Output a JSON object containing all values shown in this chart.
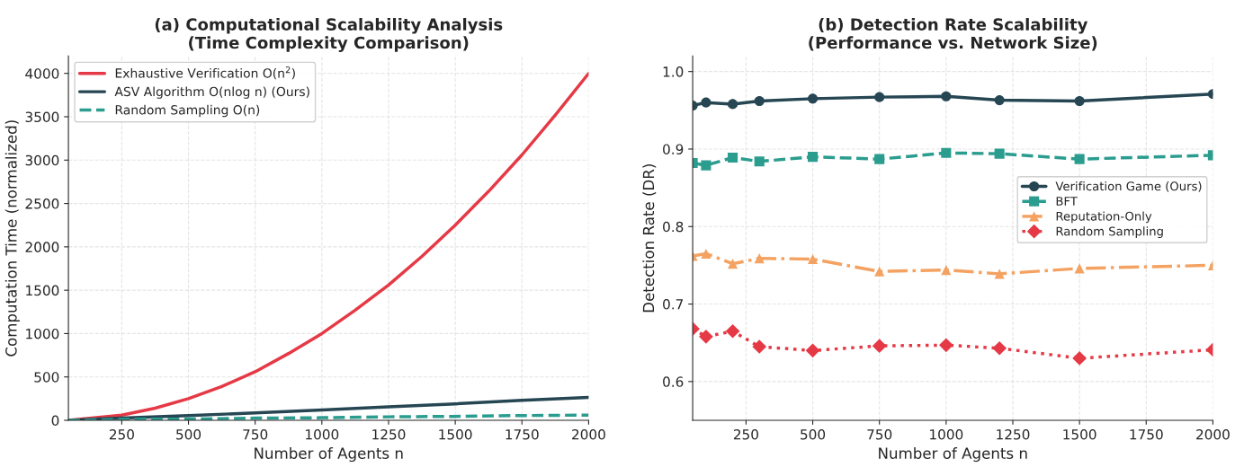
{
  "chart_data": [
    {
      "type": "line",
      "title": "(a) Computational Scalability Analysis\n(Time Complexity Comparison)",
      "xlabel": "Number of Agents n",
      "ylabel": "Computation Time (normalized)",
      "x": [
        50,
        250,
        500,
        750,
        1000,
        1250,
        1500,
        1750,
        2000
      ],
      "series": [
        {
          "name": "Exhaustive Verification O(n$^{2}$)",
          "color": "#e63946",
          "line_style": "solid",
          "x": [
            50,
            250,
            375,
            500,
            625,
            750,
            875,
            1000,
            1125,
            1250,
            1375,
            1500,
            1625,
            1750,
            1875,
            2000
          ],
          "values": [
            0,
            60,
            140,
            250,
            390,
            560,
            770,
            1000,
            1270,
            1560,
            1890,
            2250,
            2640,
            3060,
            3520,
            4000
          ]
        },
        {
          "name": "ASV Algorithm O(nlog n) (Ours)",
          "color": "#264653",
          "line_style": "solid",
          "values": [
            0,
            25,
            55,
            85,
            120,
            155,
            190,
            230,
            265
          ]
        },
        {
          "name": "Random Sampling O(n)",
          "color": "#2a9d8f",
          "line_style": "dashed",
          "values": [
            0,
            10,
            15,
            25,
            30,
            40,
            45,
            55,
            60
          ]
        }
      ],
      "xlim": [
        50,
        2000
      ],
      "xticks": [
        250,
        500,
        750,
        1000,
        1250,
        1500,
        1750,
        2000
      ],
      "ylim": [
        0,
        4200
      ],
      "yticks": [
        0,
        500,
        1000,
        1500,
        2000,
        2500,
        3000,
        3500,
        4000
      ],
      "grid": true,
      "legend": "top left"
    },
    {
      "type": "line",
      "title": "(b) Detection Rate Scalability\n(Performance vs. Network Size)",
      "xlabel": "Number of Agents n",
      "ylabel": "Detection Rate (DR)",
      "x": [
        50,
        100,
        200,
        300,
        500,
        750,
        1000,
        1200,
        1500,
        2000
      ],
      "series": [
        {
          "name": "Verification Game (Ours)",
          "color": "#264653",
          "line_style": "solid",
          "marker": "circle",
          "values": [
            0.956,
            0.96,
            0.958,
            0.962,
            0.965,
            0.967,
            0.968,
            0.963,
            0.962,
            0.971
          ]
        },
        {
          "name": "BFT",
          "color": "#2a9d8f",
          "line_style": "dashed",
          "marker": "square",
          "values": [
            0.882,
            0.879,
            0.889,
            0.884,
            0.89,
            0.887,
            0.895,
            0.894,
            0.887,
            0.892
          ]
        },
        {
          "name": "Reputation-Only",
          "color": "#f4a261",
          "line_style": "dashdot",
          "marker": "triangle",
          "values": [
            0.762,
            0.765,
            0.752,
            0.759,
            0.758,
            0.742,
            0.744,
            0.739,
            0.746,
            0.75
          ]
        },
        {
          "name": "Random Sampling",
          "color": "#e63946",
          "line_style": "dotted",
          "marker": "diamond",
          "values": [
            0.668,
            0.658,
            0.665,
            0.645,
            0.64,
            0.646,
            0.647,
            0.643,
            0.63,
            0.641
          ]
        }
      ],
      "xlim": [
        50,
        2000
      ],
      "xticks": [
        250,
        500,
        750,
        1000,
        1250,
        1500,
        1750,
        2000
      ],
      "ylim": [
        0.55,
        1.02
      ],
      "yticks": [
        0.6,
        0.7,
        0.8,
        0.9,
        {
          "value": 1.0,
          "label": "1.0"
        }
      ],
      "grid": true,
      "legend": "right"
    }
  ]
}
